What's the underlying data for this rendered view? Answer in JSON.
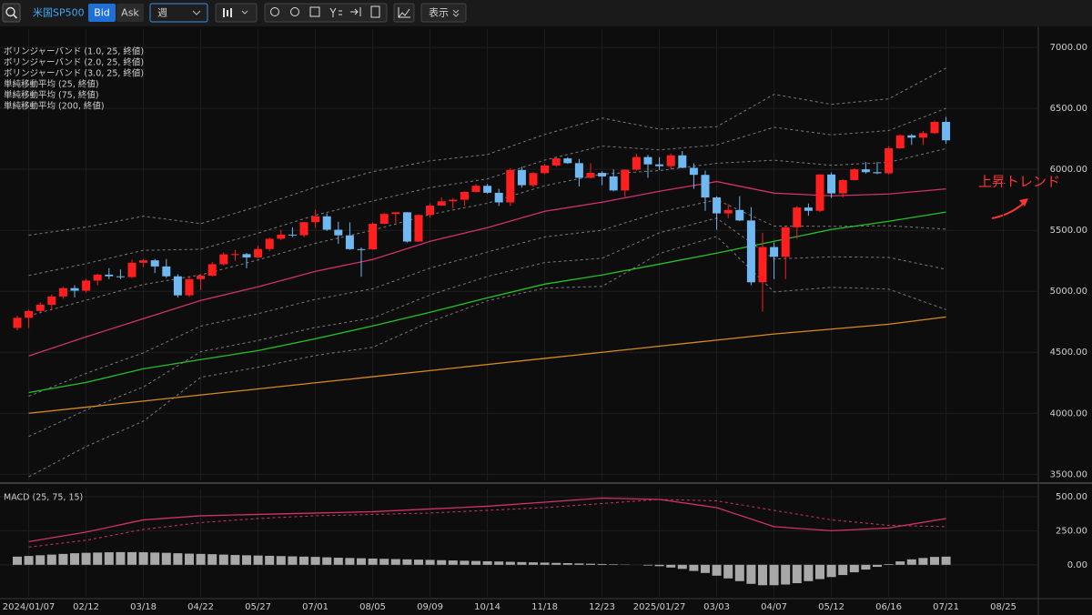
{
  "toolbar": {
    "symbol": "米国SP500",
    "bid": "Bid",
    "ask": "Ask",
    "period": "週",
    "display": "表示"
  },
  "chart_data": [
    {
      "type": "candlestick",
      "annotation": "上昇トレンド",
      "annotation_color": "#ff3535",
      "categories": [
        null,
        "2024/01/07",
        null,
        null,
        null,
        null,
        "02/12",
        null,
        null,
        null,
        null,
        "03/18",
        null,
        null,
        null,
        null,
        "04/22",
        null,
        null,
        null,
        null,
        "05/27",
        null,
        null,
        null,
        null,
        "07/01",
        null,
        null,
        null,
        null,
        "08/05",
        null,
        null,
        null,
        null,
        "09/09",
        null,
        null,
        null,
        null,
        "10/14",
        null,
        null,
        null,
        null,
        "11/18",
        null,
        null,
        null,
        null,
        "12/23",
        null,
        null,
        null,
        null,
        "2025/01/27",
        null,
        null,
        null,
        null,
        "03/03",
        null,
        null,
        null,
        null,
        "04/07",
        null,
        null,
        null,
        null,
        "05/12",
        null,
        null,
        null,
        null,
        "06/16",
        null,
        null,
        null,
        null,
        "07/21",
        null,
        null,
        null,
        null,
        "08/25"
      ],
      "open": [
        4700,
        4783,
        4839,
        4890,
        4958,
        5026,
        5005,
        5088,
        5137,
        5123,
        5117,
        5234,
        5254,
        5204,
        5123,
        4967,
        5100,
        5128,
        5222,
        5303,
        5305,
        5278,
        5347,
        5431,
        5465,
        5460,
        5567,
        5615,
        5505,
        5459,
        5346,
        5344,
        5554,
        5634,
        5648,
        5408,
        5626,
        5703,
        5738,
        5751,
        5815,
        5865,
        5808,
        5729,
        5995,
        5870,
        5969,
        6032,
        6090,
        6051,
        5931,
        5971,
        5942,
        5827,
        5997,
        6101,
        6041,
        6026,
        6115,
        6013,
        5955,
        5770,
        5639,
        5667,
        5581,
        5074,
        5363,
        5283,
        5525,
        5687,
        5660,
        5958,
        5803,
        5912,
        6000,
        5977,
        5968,
        6173,
        6279,
        6260,
        6297,
        6389,
        null,
        null,
        null,
        null,
        null
      ],
      "high": [
        4800,
        4850,
        4910,
        4975,
        5035,
        5050,
        5100,
        5145,
        5190,
        5180,
        5260,
        5265,
        5265,
        5265,
        5140,
        5115,
        5140,
        5240,
        5320,
        5340,
        5315,
        5375,
        5440,
        5505,
        5525,
        5570,
        5670,
        5640,
        5570,
        5565,
        5360,
        5565,
        5645,
        5650,
        5650,
        5630,
        5720,
        5770,
        5765,
        5820,
        5880,
        5880,
        5840,
        6010,
        6020,
        5980,
        6045,
        6100,
        6100,
        6085,
        6050,
        5985,
        6000,
        6000,
        6130,
        6120,
        6100,
        6130,
        6150,
        6050,
        5990,
        5780,
        5715,
        5780,
        5690,
        5480,
        5400,
        5530,
        5700,
        5720,
        5960,
        5975,
        5920,
        6010,
        6060,
        6060,
        6190,
        6285,
        6290,
        6315,
        6400,
        6430,
        null,
        null,
        null,
        null,
        null
      ],
      "low": [
        4680,
        4700,
        4820,
        4845,
        4940,
        4950,
        4990,
        5050,
        5100,
        5100,
        5110,
        5200,
        5150,
        5110,
        4950,
        4955,
        5010,
        5120,
        5210,
        5250,
        5190,
        5270,
        5330,
        5420,
        5445,
        5445,
        5520,
        5495,
        5390,
        5340,
        5120,
        5340,
        5550,
        5560,
        5400,
        5405,
        5605,
        5700,
        5680,
        5700,
        5810,
        5800,
        5700,
        5700,
        5850,
        5855,
        5960,
        6020,
        6045,
        5860,
        5925,
        5870,
        5820,
        5775,
        5990,
        5930,
        5995,
        6000,
        6010,
        5840,
        5660,
        5505,
        5600,
        5575,
        5050,
        4835,
        5100,
        5100,
        5430,
        5620,
        5650,
        5765,
        5770,
        5910,
        5965,
        5960,
        5960,
        6170,
        6200,
        6200,
        6290,
        6210,
        null,
        null,
        null,
        null,
        null
      ],
      "close": [
        4783,
        4839,
        4890,
        4958,
        5026,
        5005,
        5088,
        5137,
        5123,
        5117,
        5234,
        5254,
        5204,
        5123,
        4967,
        5100,
        5128,
        5222,
        5303,
        5305,
        5278,
        5347,
        5431,
        5465,
        5460,
        5567,
        5615,
        5505,
        5459,
        5346,
        5344,
        5554,
        5634,
        5648,
        5408,
        5626,
        5703,
        5738,
        5751,
        5815,
        5865,
        5808,
        5729,
        5995,
        5870,
        5969,
        6032,
        6090,
        6051,
        5931,
        5971,
        5942,
        5827,
        5997,
        6101,
        6041,
        6026,
        6115,
        6013,
        5955,
        5770,
        5639,
        5667,
        5581,
        5074,
        5363,
        5283,
        5525,
        5687,
        5660,
        5958,
        5803,
        5912,
        6000,
        5977,
        5968,
        6173,
        6279,
        6260,
        6297,
        6389,
        6238,
        null,
        null,
        null,
        null,
        null
      ],
      "up_color": "#ff1f1f",
      "down_color": "#70b8f2",
      "bands": [
        {
          "name": "ボリンジャーバンド (1.0, 25, 終値)",
          "color": "#7a7a7a",
          "line_style": "dashed",
          "x": [
            "2024/01/07",
            "02/12",
            "03/18",
            "04/22",
            "05/27",
            "07/01",
            "08/05",
            "09/09",
            "10/14",
            "11/18",
            "12/23",
            "2025/01/27",
            "03/03",
            "04/07",
            "05/12",
            "06/16",
            "07/21"
          ],
          "upper": [
            4800,
            4927,
            5056,
            5135,
            5257,
            5394,
            5501,
            5630,
            5722,
            5866,
            5961,
            5990,
            6050,
            6075,
            6033,
            6058,
            6170
          ],
          "lower": [
            4140,
            4327,
            4496,
            4715,
            4817,
            4934,
            5021,
            5190,
            5322,
            5446,
            5501,
            5650,
            5750,
            5535,
            5533,
            5538,
            5510
          ]
        },
        {
          "name": "ボリンジャーバンド (2.0, 25, 終値)",
          "color": "#7a7a7a",
          "line_style": "dashed",
          "x": [
            "2024/01/07",
            "02/12",
            "03/18",
            "04/22",
            "05/27",
            "07/01",
            "08/05",
            "09/09",
            "10/14",
            "11/18",
            "12/23",
            "2025/01/27",
            "03/03",
            "04/07",
            "05/12",
            "06/16",
            "07/21"
          ],
          "upper": [
            5130,
            5227,
            5336,
            5345,
            5477,
            5624,
            5741,
            5850,
            5922,
            6076,
            6191,
            6160,
            6200,
            6345,
            6283,
            6318,
            6500
          ],
          "lower": [
            3810,
            4027,
            4216,
            4505,
            4597,
            4704,
            4781,
            4970,
            5122,
            5236,
            5271,
            5480,
            5600,
            5265,
            5283,
            5278,
            5180
          ]
        },
        {
          "name": "ボリンジャーバンド (3.0, 25, 終値)",
          "color": "#7a7a7a",
          "line_style": "dashed",
          "x": [
            "2024/01/07",
            "02/12",
            "03/18",
            "04/22",
            "05/27",
            "07/01",
            "08/05",
            "09/09",
            "10/14",
            "11/18",
            "12/23",
            "2025/01/27",
            "03/03",
            "04/07",
            "05/12",
            "06/16",
            "07/21"
          ],
          "upper": [
            5460,
            5527,
            5616,
            5555,
            5697,
            5854,
            5981,
            6070,
            6122,
            6286,
            6421,
            6330,
            6350,
            6615,
            6533,
            6578,
            6830
          ],
          "lower": [
            3480,
            3727,
            3936,
            4295,
            4377,
            4474,
            4541,
            4750,
            4922,
            5026,
            5041,
            5310,
            5450,
            4995,
            5033,
            5018,
            4850
          ]
        }
      ],
      "series": [
        {
          "name": "単純移動平均 (25, 終値)",
          "color": "#d0306f",
          "x": [
            "2024/01/07",
            "02/12",
            "03/18",
            "04/22",
            "05/27",
            "07/01",
            "08/05",
            "09/09",
            "10/14",
            "11/18",
            "12/23",
            "2025/01/27",
            "03/03",
            "04/07",
            "05/12",
            "06/16",
            "07/21"
          ],
          "values": [
            4470,
            4627,
            4776,
            4925,
            5037,
            5164,
            5261,
            5410,
            5522,
            5656,
            5731,
            5820,
            5900,
            5805,
            5783,
            5798,
            5840
          ]
        },
        {
          "name": "単純移動平均 (75, 終値)",
          "color": "#22c322",
          "x": [
            "2024/01/07",
            "02/12",
            "03/18",
            "04/22",
            "05/27",
            "07/01",
            "08/05",
            "09/09",
            "10/14",
            "11/18",
            "12/23",
            "2025/01/27",
            "03/03",
            "04/07",
            "05/12",
            "06/16",
            "07/21"
          ],
          "values": [
            4170,
            4253,
            4365,
            4440,
            4514,
            4611,
            4716,
            4828,
            4947,
            5059,
            5134,
            5223,
            5313,
            5410,
            5507,
            5574,
            5650
          ]
        },
        {
          "name": "単純移動平均 (200, 終値)",
          "color": "#d98a1e",
          "x": [
            "2024/01/07",
            "02/12",
            "03/18",
            "04/22",
            "05/27",
            "07/01",
            "08/05",
            "09/09",
            "10/14",
            "11/18",
            "12/23",
            "2025/01/27",
            "03/03",
            "04/07",
            "05/12",
            "06/16",
            "07/21"
          ],
          "values": [
            4000,
            4050,
            4100,
            4150,
            4200,
            4250,
            4300,
            4350,
            4400,
            4450,
            4500,
            4550,
            4600,
            4650,
            4690,
            4730,
            4790
          ]
        }
      ],
      "ylim": [
        3450,
        7150
      ],
      "yticks": [
        {
          "value": 3500,
          "label": "3500.00"
        },
        {
          "value": 4000,
          "label": "4000.00"
        },
        {
          "value": 4500,
          "label": "4500.00"
        },
        {
          "value": 5000,
          "label": "5000.00"
        },
        {
          "value": 5500,
          "label": "5500.00"
        },
        {
          "value": 6000,
          "label": "6000.00"
        },
        {
          "value": 6500,
          "label": "6500.00"
        },
        {
          "value": 7000,
          "label": "7000.00"
        }
      ],
      "grid": true
    },
    {
      "type": "macd",
      "title": "MACD (25, 75, 15)",
      "title_color": "#d0306f",
      "series": [
        {
          "color": "#d0306f",
          "line_style": "solid",
          "x": [
            "2024/01/07",
            "02/12",
            "03/18",
            "04/22",
            "05/27",
            "07/01",
            "08/05",
            "09/09",
            "10/14",
            "11/18",
            "12/23",
            "2025/01/27",
            "03/03",
            "04/07",
            "05/12",
            "06/16",
            "07/21"
          ],
          "values": [
            170,
            240,
            330,
            360,
            370,
            380,
            390,
            410,
            430,
            460,
            490,
            480,
            420,
            280,
            250,
            270,
            340
          ]
        },
        {
          "color": "#d0306f",
          "line_style": "dashed",
          "x": [
            "2024/01/07",
            "02/12",
            "03/18",
            "04/22",
            "05/27",
            "07/01",
            "08/05",
            "09/09",
            "10/14",
            "11/18",
            "12/23",
            "2025/01/27",
            "03/03",
            "04/07",
            "05/12",
            "06/16",
            "07/21"
          ],
          "values": [
            130,
            180,
            260,
            310,
            340,
            360,
            370,
            380,
            400,
            420,
            450,
            480,
            470,
            400,
            330,
            290,
            280
          ]
        }
      ],
      "histogram": {
        "color": "#a8a8a8",
        "values": [
          60,
          65,
          70,
          75,
          80,
          85,
          88,
          90,
          92,
          93,
          93,
          92,
          90,
          88,
          85,
          82,
          80,
          78,
          75,
          72,
          70,
          68,
          66,
          64,
          62,
          60,
          58,
          55,
          52,
          50,
          48,
          46,
          44,
          42,
          40,
          38,
          36,
          34,
          32,
          30,
          28,
          26,
          24,
          22,
          20,
          18,
          16,
          14,
          12,
          10,
          8,
          6,
          4,
          2,
          0,
          -5,
          -10,
          -20,
          -30,
          -45,
          -60,
          -80,
          -100,
          -120,
          -140,
          -150,
          -150,
          -145,
          -135,
          -120,
          -105,
          -90,
          -75,
          -55,
          -35,
          -15,
          5,
          25,
          40,
          50,
          58,
          60,
          null,
          null,
          null,
          null,
          null
        ]
      },
      "ylim": [
        -235,
        560
      ],
      "yticks": [
        {
          "value": 0,
          "label": "0.00"
        },
        {
          "value": 250,
          "label": "250.00"
        },
        {
          "value": 500,
          "label": "500.00"
        }
      ],
      "grid": true
    }
  ]
}
